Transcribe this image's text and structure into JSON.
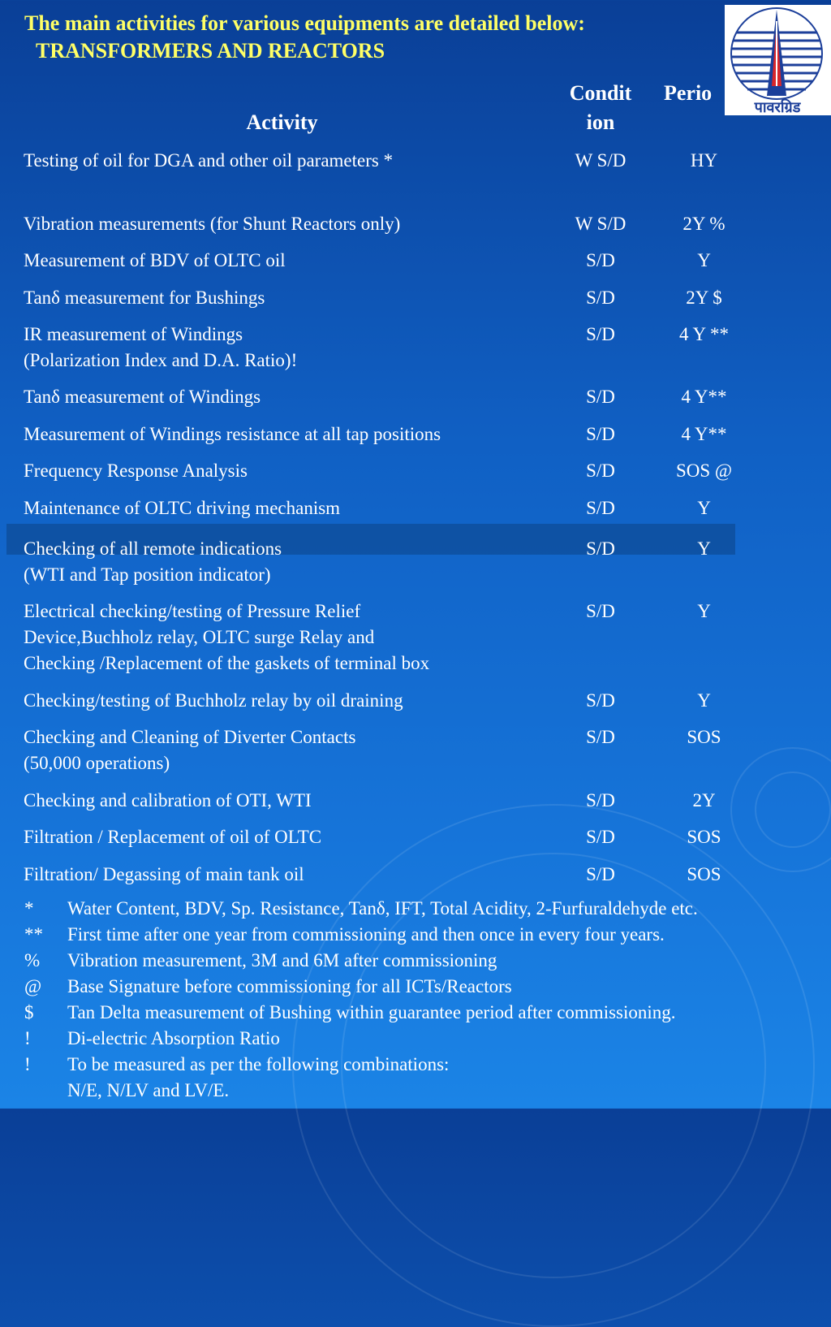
{
  "slide": {
    "title": "The main activities for various equipments are detailed below:",
    "subtitle": "TRANSFORMERS AND REACTORS"
  },
  "logo": {
    "icon": "powergrid-tower-logo",
    "text": "पावरग्रिड"
  },
  "table": {
    "headers": {
      "activity": "Activity",
      "condition": "Condit\nion",
      "periodicity": "Perio"
    },
    "rows": [
      {
        "activity": "Testing of oil for DGA and other oil parameters *",
        "condition": "W S/D",
        "periodicity": "HY"
      },
      {
        "activity": "Vibration measurements  (for Shunt Reactors only)",
        "condition": "W S/D",
        "periodicity": "2Y %"
      },
      {
        "activity": "Measurement of BDV of OLTC oil",
        "condition": "S/D",
        "periodicity": "Y"
      },
      {
        "activity": "Tanδ measurement for Bushings",
        "condition": "S/D",
        "periodicity": "2Y $"
      },
      {
        "activity": "IR measurement of Windings\n(Polarization Index and D.A. Ratio)!",
        "condition": "S/D",
        "periodicity": "4 Y **"
      },
      {
        "activity": "Tanδ measurement of Windings",
        "condition": "S/D",
        "periodicity": "4 Y**"
      },
      {
        "activity": "Measurement of Windings resistance at all tap positions",
        "condition": "S/D",
        "periodicity": "4 Y**"
      },
      {
        "activity": "Frequency Response Analysis",
        "condition": "S/D",
        "periodicity": "SOS @"
      },
      {
        "activity": "Maintenance of OLTC driving mechanism",
        "condition": "S/D",
        "periodicity": "Y"
      },
      {
        "activity": "Checking of all remote indications\n(WTI and Tap position indicator)",
        "condition": "S/D",
        "periodicity": "Y"
      },
      {
        "activity": "Electrical checking/testing of Pressure Relief\n Device,Buchholz relay, OLTC surge Relay and\n Checking /Replacement of the gaskets of  terminal box",
        "condition": "S/D",
        "periodicity": "Y"
      },
      {
        "activity": "Checking/testing of Buchholz relay by oil  draining",
        "condition": "S/D",
        "periodicity": "Y"
      },
      {
        "activity": "Checking and Cleaning of Diverter Contacts\n(50,000 operations)",
        "condition": "S/D",
        "periodicity": "SOS"
      },
      {
        "activity": "Checking and calibration of OTI, WTI",
        "condition": "S/D",
        "periodicity": "2Y"
      },
      {
        "activity": "Filtration / Replacement of oil of OLTC",
        "condition": "S/D",
        "periodicity": "SOS"
      },
      {
        "activity": "Filtration/ Degassing of main tank oil",
        "condition": "S/D",
        "periodicity": "SOS"
      }
    ]
  },
  "notes": [
    {
      "symbol": "*",
      "text": "Water Content, BDV, Sp. Resistance, Tanδ, IFT, Total Acidity, 2-Furfuraldehyde etc."
    },
    {
      "symbol": "**",
      "text": "First time after one year from commissioning and then once in every four years."
    },
    {
      "symbol": "%",
      "text": "Vibration measurement, 3M and 6M after commissioning"
    },
    {
      "symbol": "@",
      "text": "Base Signature before commissioning for all ICTs/Reactors"
    },
    {
      "symbol": "$",
      "text": "Tan Delta measurement of Bushing within guarantee period after commissioning."
    },
    {
      "symbol": "!",
      "text": " Di-electric Absorption Ratio"
    },
    {
      "symbol": "!",
      "text": "To be measured as per the following combinations:"
    },
    {
      "symbol": "",
      "text": "N/E, N/LV and LV/E."
    }
  ]
}
